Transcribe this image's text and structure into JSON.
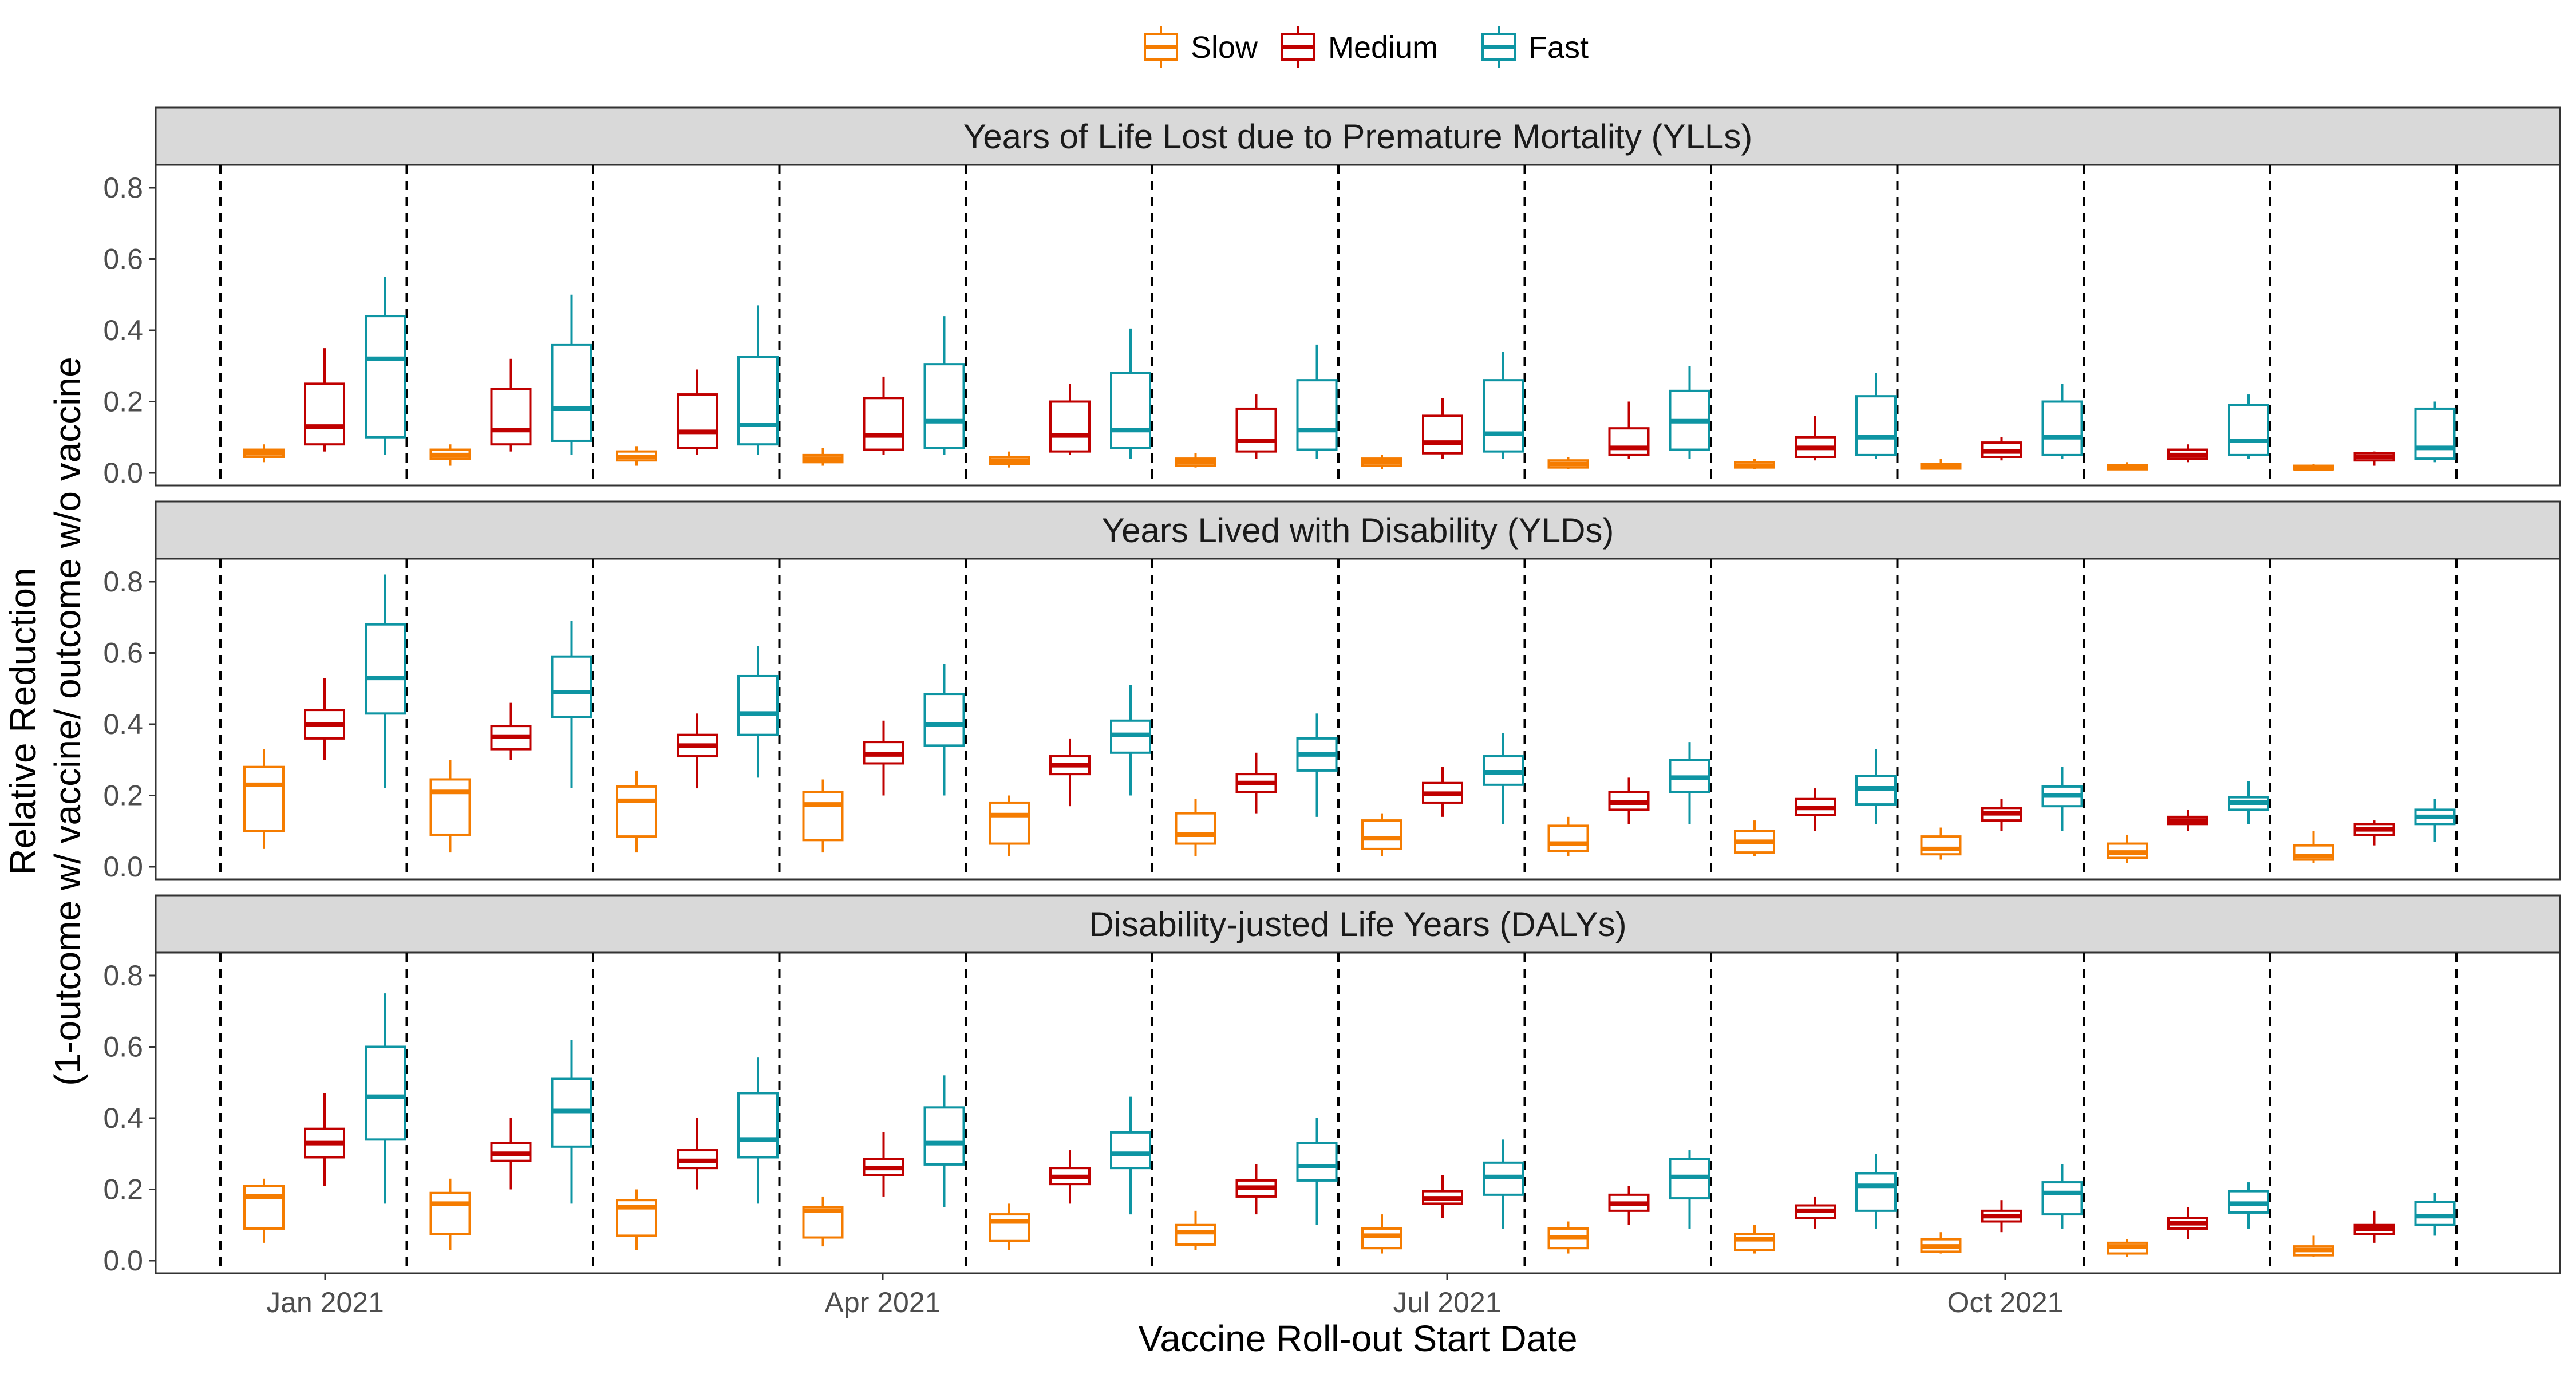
{
  "legend": [
    {
      "label": "Slow",
      "color": "#F57C00"
    },
    {
      "label": "Medium",
      "color": "#C00000"
    },
    {
      "label": "Fast",
      "color": "#0E95A3"
    }
  ],
  "axes": {
    "xlabel": "Vaccine Roll-out Start Date",
    "ylabel_line1": "Relative Reduction",
    "ylabel_line2": "(1-outcome w/ vaccine/ outcome w/o vaccine",
    "x_ticks": [
      "Jan 2021",
      "Apr 2021",
      "Jul 2021",
      "Oct 2021"
    ],
    "y_ticks": [
      "0.0",
      "0.2",
      "0.4",
      "0.6",
      "0.8"
    ]
  },
  "chart_data": {
    "type": "boxplot",
    "x_unit": "start month",
    "months": [
      "2021-01",
      "2021-02",
      "2021-03",
      "2021-04",
      "2021-05",
      "2021-06",
      "2021-07",
      "2021-08",
      "2021-09",
      "2021-10",
      "2021-11",
      "2021-12"
    ],
    "ylim": [
      0,
      0.86
    ],
    "grid": false,
    "legend_position": "top",
    "series_names": [
      "Slow",
      "Medium",
      "Fast"
    ],
    "box_fields": [
      "min",
      "q1",
      "median",
      "q3",
      "max"
    ],
    "panels": [
      {
        "title": "Years of Life Lost due to Premature Mortality (YLLs)",
        "boxes": {
          "Slow": [
            [
              0.03,
              0.045,
              0.055,
              0.065,
              0.08
            ],
            [
              0.02,
              0.04,
              0.05,
              0.065,
              0.08
            ],
            [
              0.02,
              0.035,
              0.045,
              0.06,
              0.075
            ],
            [
              0.02,
              0.03,
              0.04,
              0.05,
              0.07
            ],
            [
              0.015,
              0.025,
              0.035,
              0.045,
              0.06
            ],
            [
              0.015,
              0.02,
              0.03,
              0.04,
              0.055
            ],
            [
              0.01,
              0.02,
              0.03,
              0.04,
              0.05
            ],
            [
              0.01,
              0.015,
              0.025,
              0.035,
              0.045
            ],
            [
              0.01,
              0.015,
              0.02,
              0.03,
              0.04
            ],
            [
              0.01,
              0.012,
              0.02,
              0.025,
              0.04
            ],
            [
              0.008,
              0.01,
              0.015,
              0.022,
              0.03
            ],
            [
              0.005,
              0.01,
              0.012,
              0.02,
              0.025
            ]
          ],
          "Medium": [
            [
              0.06,
              0.08,
              0.13,
              0.25,
              0.35
            ],
            [
              0.06,
              0.08,
              0.12,
              0.235,
              0.32
            ],
            [
              0.05,
              0.07,
              0.115,
              0.22,
              0.29
            ],
            [
              0.05,
              0.065,
              0.105,
              0.21,
              0.27
            ],
            [
              0.05,
              0.06,
              0.105,
              0.2,
              0.25
            ],
            [
              0.04,
              0.06,
              0.09,
              0.18,
              0.22
            ],
            [
              0.04,
              0.055,
              0.085,
              0.16,
              0.21
            ],
            [
              0.04,
              0.05,
              0.07,
              0.125,
              0.2
            ],
            [
              0.035,
              0.045,
              0.07,
              0.1,
              0.16
            ],
            [
              0.035,
              0.045,
              0.06,
              0.085,
              0.1
            ],
            [
              0.03,
              0.04,
              0.05,
              0.065,
              0.08
            ],
            [
              0.02,
              0.035,
              0.045,
              0.055,
              0.06
            ]
          ],
          "Fast": [
            [
              0.05,
              0.1,
              0.32,
              0.44,
              0.55
            ],
            [
              0.05,
              0.09,
              0.18,
              0.36,
              0.5
            ],
            [
              0.05,
              0.08,
              0.135,
              0.325,
              0.47
            ],
            [
              0.05,
              0.07,
              0.145,
              0.305,
              0.44
            ],
            [
              0.04,
              0.07,
              0.12,
              0.28,
              0.405
            ],
            [
              0.04,
              0.065,
              0.12,
              0.26,
              0.36
            ],
            [
              0.04,
              0.06,
              0.11,
              0.26,
              0.34
            ],
            [
              0.04,
              0.065,
              0.145,
              0.23,
              0.3
            ],
            [
              0.04,
              0.05,
              0.1,
              0.215,
              0.28
            ],
            [
              0.04,
              0.05,
              0.1,
              0.2,
              0.25
            ],
            [
              0.04,
              0.05,
              0.09,
              0.19,
              0.22
            ],
            [
              0.03,
              0.04,
              0.07,
              0.18,
              0.2
            ]
          ]
        }
      },
      {
        "title": "Years Lived with Disability (YLDs)",
        "boxes": {
          "Slow": [
            [
              0.05,
              0.1,
              0.23,
              0.28,
              0.33
            ],
            [
              0.04,
              0.09,
              0.21,
              0.245,
              0.3
            ],
            [
              0.04,
              0.085,
              0.185,
              0.225,
              0.27
            ],
            [
              0.04,
              0.075,
              0.175,
              0.21,
              0.245
            ],
            [
              0.03,
              0.065,
              0.145,
              0.18,
              0.2
            ],
            [
              0.03,
              0.065,
              0.09,
              0.15,
              0.19
            ],
            [
              0.03,
              0.05,
              0.08,
              0.13,
              0.15
            ],
            [
              0.03,
              0.045,
              0.065,
              0.115,
              0.14
            ],
            [
              0.03,
              0.04,
              0.07,
              0.1,
              0.13
            ],
            [
              0.02,
              0.035,
              0.05,
              0.085,
              0.11
            ],
            [
              0.01,
              0.025,
              0.04,
              0.065,
              0.09
            ],
            [
              0.01,
              0.02,
              0.03,
              0.06,
              0.1
            ]
          ],
          "Medium": [
            [
              0.3,
              0.36,
              0.4,
              0.44,
              0.53
            ],
            [
              0.3,
              0.33,
              0.365,
              0.395,
              0.46
            ],
            [
              0.22,
              0.31,
              0.34,
              0.37,
              0.43
            ],
            [
              0.2,
              0.29,
              0.315,
              0.35,
              0.41
            ],
            [
              0.17,
              0.26,
              0.285,
              0.31,
              0.36
            ],
            [
              0.15,
              0.21,
              0.235,
              0.26,
              0.32
            ],
            [
              0.14,
              0.18,
              0.205,
              0.235,
              0.28
            ],
            [
              0.12,
              0.16,
              0.18,
              0.21,
              0.25
            ],
            [
              0.1,
              0.145,
              0.165,
              0.19,
              0.22
            ],
            [
              0.1,
              0.13,
              0.15,
              0.165,
              0.19
            ],
            [
              0.1,
              0.12,
              0.13,
              0.14,
              0.16
            ],
            [
              0.06,
              0.09,
              0.105,
              0.12,
              0.13
            ]
          ],
          "Fast": [
            [
              0.22,
              0.43,
              0.53,
              0.68,
              0.82
            ],
            [
              0.22,
              0.42,
              0.49,
              0.59,
              0.69
            ],
            [
              0.25,
              0.37,
              0.43,
              0.535,
              0.62
            ],
            [
              0.2,
              0.34,
              0.4,
              0.485,
              0.57
            ],
            [
              0.2,
              0.32,
              0.37,
              0.41,
              0.51
            ],
            [
              0.14,
              0.27,
              0.315,
              0.36,
              0.43
            ],
            [
              0.12,
              0.23,
              0.265,
              0.31,
              0.375
            ],
            [
              0.12,
              0.21,
              0.25,
              0.3,
              0.35
            ],
            [
              0.12,
              0.175,
              0.22,
              0.255,
              0.33
            ],
            [
              0.1,
              0.17,
              0.2,
              0.225,
              0.28
            ],
            [
              0.12,
              0.16,
              0.18,
              0.195,
              0.24
            ],
            [
              0.07,
              0.12,
              0.14,
              0.16,
              0.19
            ]
          ]
        }
      },
      {
        "title": "Disability-justed Life Years (DALYs)",
        "boxes": {
          "Slow": [
            [
              0.05,
              0.09,
              0.18,
              0.21,
              0.23
            ],
            [
              0.03,
              0.075,
              0.16,
              0.19,
              0.23
            ],
            [
              0.03,
              0.07,
              0.15,
              0.17,
              0.2
            ],
            [
              0.04,
              0.065,
              0.14,
              0.15,
              0.18
            ],
            [
              0.03,
              0.055,
              0.11,
              0.13,
              0.16
            ],
            [
              0.03,
              0.045,
              0.08,
              0.1,
              0.14
            ],
            [
              0.02,
              0.035,
              0.07,
              0.09,
              0.13
            ],
            [
              0.02,
              0.035,
              0.065,
              0.09,
              0.11
            ],
            [
              0.02,
              0.03,
              0.06,
              0.075,
              0.1
            ],
            [
              0.02,
              0.025,
              0.04,
              0.06,
              0.08
            ],
            [
              0.01,
              0.02,
              0.04,
              0.05,
              0.06
            ],
            [
              0.01,
              0.015,
              0.03,
              0.04,
              0.07
            ]
          ],
          "Medium": [
            [
              0.21,
              0.29,
              0.33,
              0.37,
              0.47
            ],
            [
              0.2,
              0.28,
              0.3,
              0.33,
              0.4
            ],
            [
              0.2,
              0.26,
              0.28,
              0.31,
              0.4
            ],
            [
              0.18,
              0.24,
              0.26,
              0.285,
              0.36
            ],
            [
              0.16,
              0.215,
              0.235,
              0.26,
              0.31
            ],
            [
              0.13,
              0.18,
              0.205,
              0.225,
              0.27
            ],
            [
              0.12,
              0.16,
              0.175,
              0.195,
              0.24
            ],
            [
              0.1,
              0.14,
              0.16,
              0.185,
              0.21
            ],
            [
              0.09,
              0.12,
              0.14,
              0.155,
              0.18
            ],
            [
              0.08,
              0.11,
              0.125,
              0.14,
              0.17
            ],
            [
              0.06,
              0.09,
              0.105,
              0.12,
              0.15
            ],
            [
              0.05,
              0.075,
              0.09,
              0.1,
              0.14
            ]
          ],
          "Fast": [
            [
              0.16,
              0.34,
              0.46,
              0.6,
              0.75
            ],
            [
              0.16,
              0.32,
              0.42,
              0.51,
              0.62
            ],
            [
              0.16,
              0.29,
              0.34,
              0.47,
              0.57
            ],
            [
              0.15,
              0.27,
              0.33,
              0.43,
              0.52
            ],
            [
              0.13,
              0.26,
              0.3,
              0.36,
              0.46
            ],
            [
              0.1,
              0.225,
              0.265,
              0.33,
              0.4
            ],
            [
              0.09,
              0.185,
              0.235,
              0.275,
              0.34
            ],
            [
              0.09,
              0.175,
              0.235,
              0.285,
              0.31
            ],
            [
              0.09,
              0.14,
              0.21,
              0.245,
              0.3
            ],
            [
              0.09,
              0.13,
              0.19,
              0.22,
              0.27
            ],
            [
              0.09,
              0.135,
              0.16,
              0.195,
              0.22
            ],
            [
              0.07,
              0.1,
              0.125,
              0.165,
              0.19
            ]
          ]
        }
      }
    ]
  }
}
